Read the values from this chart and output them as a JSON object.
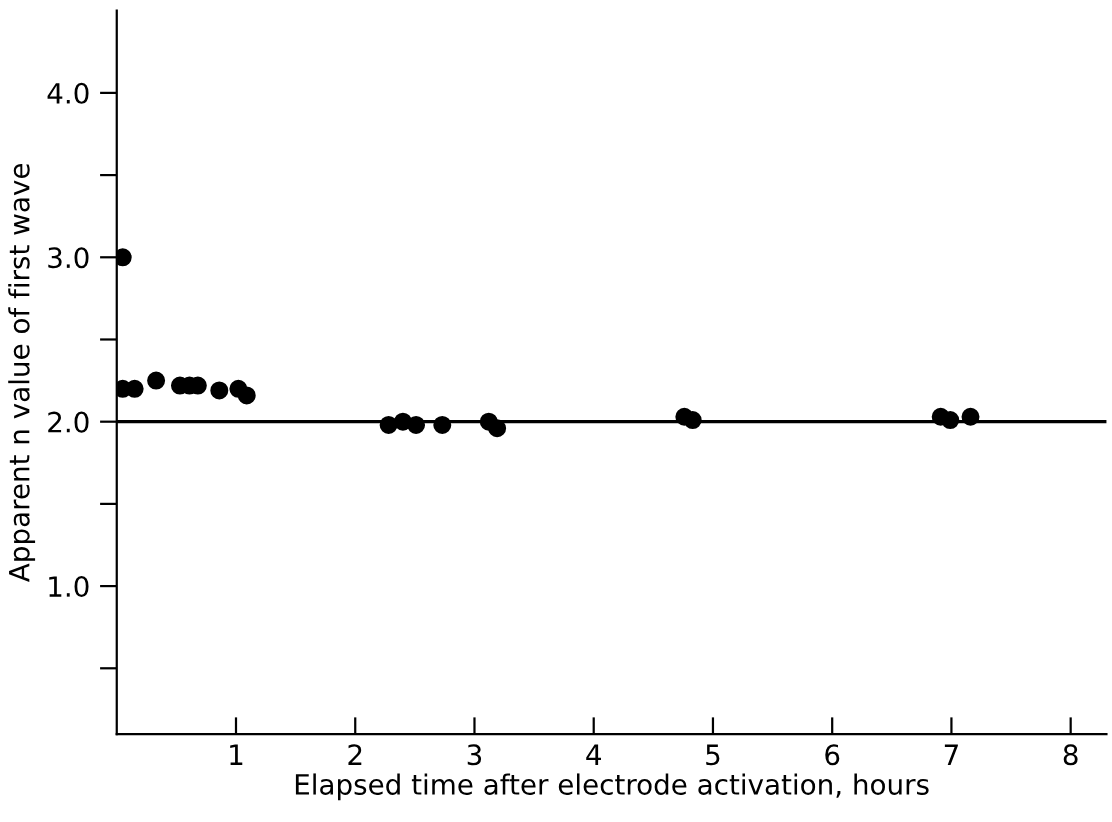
{
  "chart_data": {
    "type": "scatter",
    "xlabel": "Elapsed time after electrode activation, hours",
    "ylabel": "Apparent n value of first wave",
    "x": [
      0.05,
      0.05,
      0.15,
      0.33,
      0.53,
      0.61,
      0.68,
      0.86,
      1.02,
      1.09,
      2.28,
      2.4,
      2.51,
      2.73,
      3.12,
      3.19,
      4.76,
      4.83,
      6.91,
      6.99,
      7.16
    ],
    "values": [
      3.0,
      2.2,
      2.2,
      2.25,
      2.22,
      2.22,
      2.22,
      2.19,
      2.2,
      2.16,
      1.98,
      2.0,
      1.98,
      1.98,
      2.0,
      1.96,
      2.03,
      2.01,
      2.03,
      2.01,
      2.03
    ],
    "color": "#000000",
    "marker": "circle",
    "xlim": [
      0,
      8.3
    ],
    "ylim": [
      0.1,
      4.5
    ],
    "xticks": [
      1,
      2,
      3,
      4,
      5,
      6,
      7,
      8
    ],
    "yticks": [
      {
        "value": 0.5,
        "label": null
      },
      {
        "value": 1.0,
        "label": "1.0"
      },
      {
        "value": 1.5,
        "label": null
      },
      {
        "value": 2.0,
        "label": "2.0"
      },
      {
        "value": 2.5,
        "label": null
      },
      {
        "value": 3.0,
        "label": "3.0"
      },
      {
        "value": 3.5,
        "label": null
      },
      {
        "value": 4.0,
        "label": "4.0"
      }
    ],
    "ref_lines": [
      {
        "axis": "y",
        "value": 2.0,
        "color": "#000000"
      }
    ],
    "grid": false,
    "legend": false
  }
}
